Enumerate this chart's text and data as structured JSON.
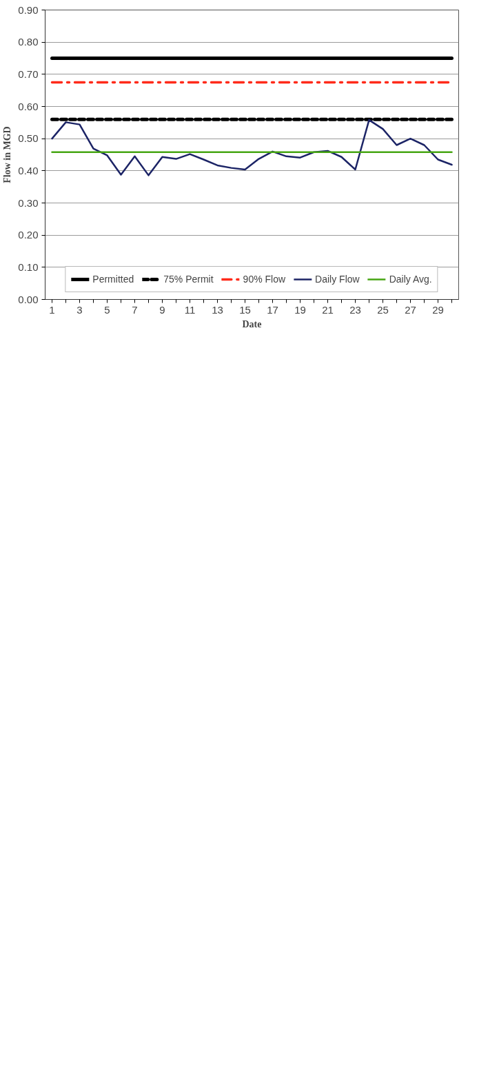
{
  "chart_data": {
    "type": "line",
    "xlabel": "Date",
    "ylabel": "Flow in MGD",
    "x": [
      1,
      2,
      3,
      4,
      5,
      6,
      7,
      8,
      9,
      10,
      11,
      12,
      13,
      14,
      15,
      16,
      17,
      18,
      19,
      20,
      21,
      22,
      23,
      24,
      25,
      26,
      27,
      28,
      29,
      30
    ],
    "series": [
      {
        "name": "Permitted",
        "color": "#000000",
        "line_style": "solid",
        "values": [
          0.75,
          0.75,
          0.75,
          0.75,
          0.75,
          0.75,
          0.75,
          0.75,
          0.75,
          0.75,
          0.75,
          0.75,
          0.75,
          0.75,
          0.75,
          0.75,
          0.75,
          0.75,
          0.75,
          0.75,
          0.75,
          0.75,
          0.75,
          0.75,
          0.75,
          0.75,
          0.75,
          0.75,
          0.75,
          0.75
        ]
      },
      {
        "name": "75% Permit",
        "color": "#000000",
        "line_style": "dashed",
        "values": [
          0.56,
          0.56,
          0.56,
          0.56,
          0.56,
          0.56,
          0.56,
          0.56,
          0.56,
          0.56,
          0.56,
          0.56,
          0.56,
          0.56,
          0.56,
          0.56,
          0.56,
          0.56,
          0.56,
          0.56,
          0.56,
          0.56,
          0.56,
          0.56,
          0.56,
          0.56,
          0.56,
          0.56,
          0.56,
          0.56
        ]
      },
      {
        "name": "90% Flow",
        "color": "#ff2a1a",
        "line_style": "dashdot",
        "values": [
          0.675,
          0.675,
          0.675,
          0.675,
          0.675,
          0.675,
          0.675,
          0.675,
          0.675,
          0.675,
          0.675,
          0.675,
          0.675,
          0.675,
          0.675,
          0.675,
          0.675,
          0.675,
          0.675,
          0.675,
          0.675,
          0.675,
          0.675,
          0.675,
          0.675,
          0.675,
          0.675,
          0.675,
          0.675,
          0.675
        ]
      },
      {
        "name": "Daily Flow",
        "color": "#1c2466",
        "line_style": "solid",
        "values": [
          0.5,
          0.551,
          0.544,
          0.469,
          0.448,
          0.388,
          0.445,
          0.386,
          0.443,
          0.437,
          0.452,
          0.435,
          0.417,
          0.409,
          0.404,
          0.437,
          0.46,
          0.445,
          0.441,
          0.458,
          0.462,
          0.443,
          0.404,
          0.558,
          0.53,
          0.48,
          0.5,
          0.48,
          0.435,
          0.419
        ]
      },
      {
        "name": "Daily Avg.",
        "color": "#46a512",
        "line_style": "solid",
        "values": [
          0.458,
          0.458,
          0.458,
          0.458,
          0.458,
          0.458,
          0.458,
          0.458,
          0.458,
          0.458,
          0.458,
          0.458,
          0.458,
          0.458,
          0.458,
          0.458,
          0.458,
          0.458,
          0.458,
          0.458,
          0.458,
          0.458,
          0.458,
          0.458,
          0.458,
          0.458,
          0.458,
          0.458,
          0.458,
          0.458
        ]
      }
    ],
    "xlim": [
      0.5,
      30.5
    ],
    "xticks": [
      1,
      {
        "value": 2,
        "label": null
      },
      3,
      {
        "value": 4,
        "label": null
      },
      5,
      {
        "value": 6,
        "label": null
      },
      7,
      {
        "value": 8,
        "label": null
      },
      9,
      {
        "value": 10,
        "label": null
      },
      11,
      {
        "value": 12,
        "label": null
      },
      13,
      {
        "value": 14,
        "label": null
      },
      15,
      {
        "value": 16,
        "label": null
      },
      17,
      {
        "value": 18,
        "label": null
      },
      19,
      {
        "value": 20,
        "label": null
      },
      21,
      {
        "value": 22,
        "label": null
      },
      23,
      {
        "value": 24,
        "label": null
      },
      25,
      {
        "value": 26,
        "label": null
      },
      27,
      {
        "value": 28,
        "label": null
      },
      29,
      {
        "value": 30,
        "label": null
      }
    ],
    "ylim": [
      0,
      0.9
    ],
    "yticks": [
      {
        "value": 0,
        "label": "0.00"
      },
      {
        "value": 0.1,
        "label": "0.10"
      },
      {
        "value": 0.2,
        "label": "0.20"
      },
      {
        "value": 0.3,
        "label": "0.30"
      },
      {
        "value": 0.4,
        "label": "0.40"
      },
      {
        "value": 0.5,
        "label": "0.50"
      },
      {
        "value": 0.6,
        "label": "0.60"
      },
      {
        "value": 0.7,
        "label": "0.70"
      },
      {
        "value": 0.8,
        "label": "0.80"
      },
      {
        "value": 0.9,
        "label": "0.90"
      }
    ],
    "grid": "y",
    "legend": "bottom",
    "marker": "none"
  }
}
